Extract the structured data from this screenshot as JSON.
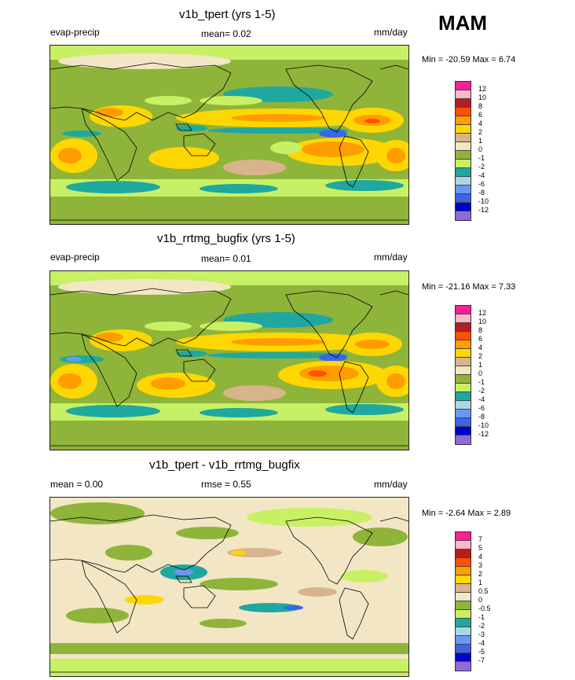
{
  "season_label": "MAM",
  "colors": {
    "main_levels": [
      "#8e6bd8",
      "#0000c8",
      "#3c64e6",
      "#6e96f0",
      "#a8d8e6",
      "#1ea8a0",
      "#8fb43a",
      "#c8f064",
      "#f2e6c4",
      "#d8b48c",
      "#ffd700",
      "#ff9d00",
      "#ff5000",
      "#b41e1e",
      "#ffb4c8",
      "#ff1e96"
    ],
    "diff_levels": [
      "#8e6bd8",
      "#0000c8",
      "#3c64e6",
      "#6e96f0",
      "#a8d8e6",
      "#1ea8a0",
      "#8fb43a",
      "#c8f064",
      "#f2e6c4",
      "#d8b48c",
      "#ffd700",
      "#ff9d00",
      "#ff5000",
      "#b41e1e",
      "#ffb4c8",
      "#ff1e96"
    ]
  },
  "chart_data": [
    {
      "type": "heatmap",
      "title": "v1b_tpert (yrs 1-5)",
      "left_label": "evap-precip",
      "center_label": "mean=   0.02",
      "units": "mm/day",
      "min_max": "Min = -20.59 Max =   6.74",
      "colorbar_levels": [
        "12",
        "10",
        "8",
        "6",
        "4",
        "2",
        "1",
        "0",
        "-1",
        "-2",
        "-4",
        "-6",
        "-8",
        "-10",
        "-12"
      ]
    },
    {
      "type": "heatmap",
      "title": "v1b_rrtmg_bugfix (yrs 1-5)",
      "left_label": "evap-precip",
      "center_label": "mean=   0.01",
      "units": "mm/day",
      "min_max": "Min = -21.16 Max =   7.33",
      "colorbar_levels": [
        "12",
        "10",
        "8",
        "6",
        "4",
        "2",
        "1",
        "0",
        "-1",
        "-2",
        "-4",
        "-6",
        "-8",
        "-10",
        "-12"
      ]
    },
    {
      "type": "heatmap",
      "title": "v1b_tpert - v1b_rrtmg_bugfix",
      "left_label": "mean =   0.00",
      "center_label": "rmse =   0.55",
      "units": "mm/day",
      "min_max": "Min =  -2.64 Max =   2.89",
      "colorbar_levels": [
        "7",
        "5",
        "4",
        "3",
        "2",
        "1",
        "0.5",
        "0",
        "-0.5",
        "-1",
        "-2",
        "-3",
        "-4",
        "-5",
        "-7"
      ]
    }
  ]
}
